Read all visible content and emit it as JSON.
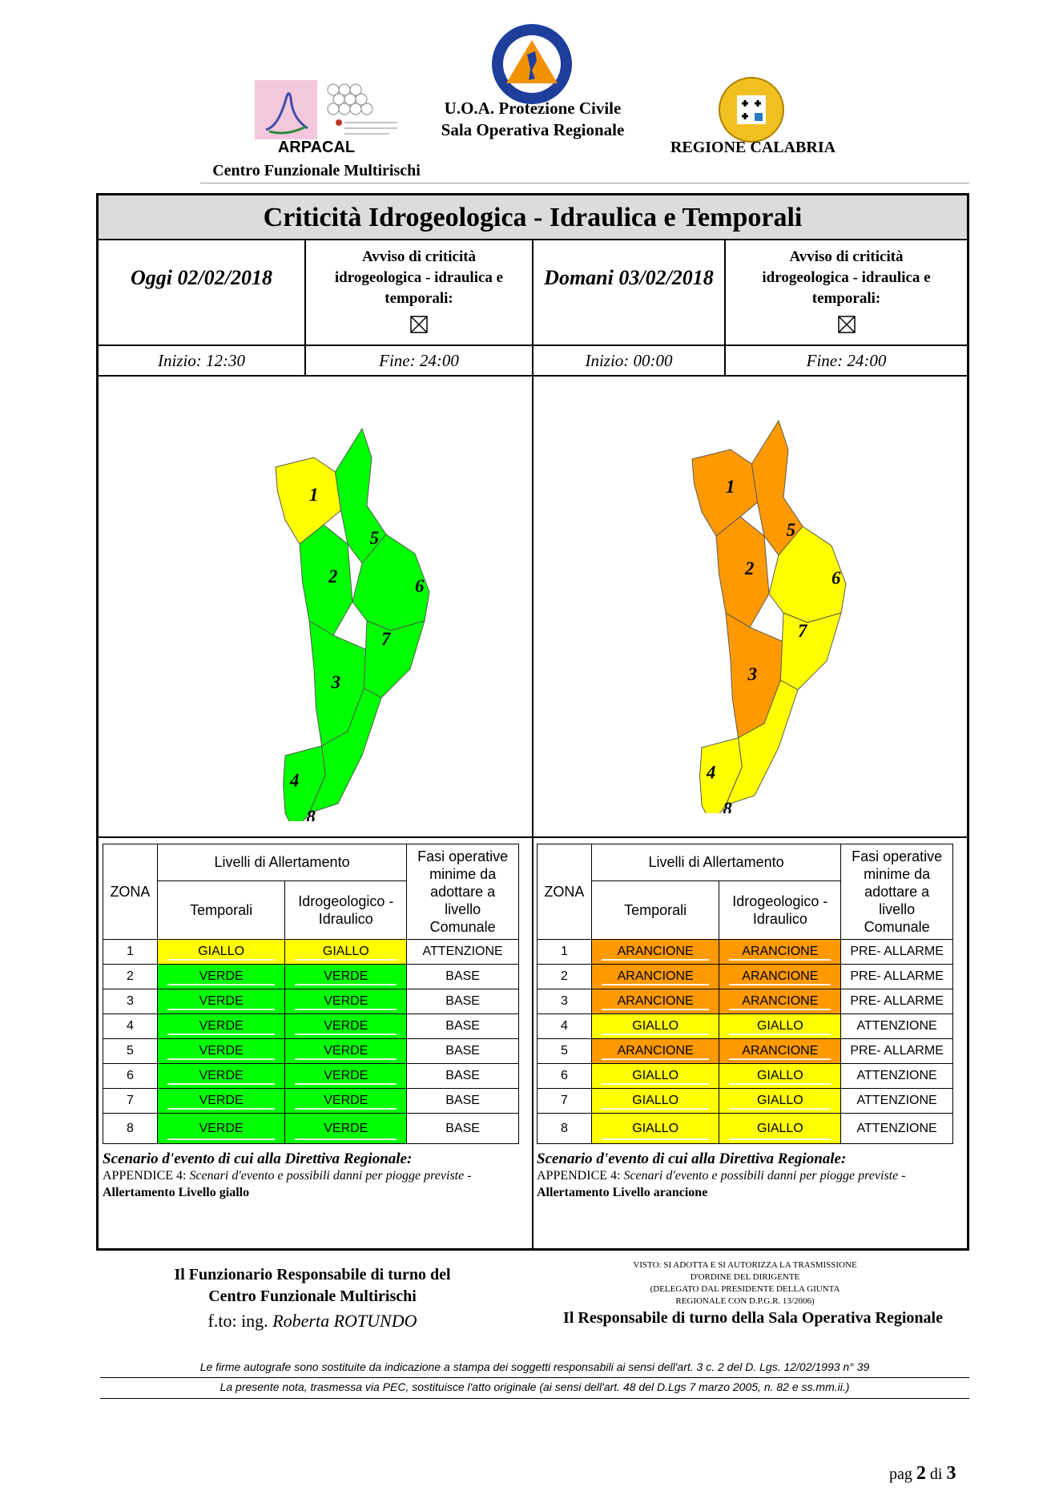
{
  "header": {
    "arpacal_name": "ARPACAL",
    "arpacal_sub": "Centro Funzionale Multirischi",
    "uoa_line1": "U.O.A. Protezione Civile",
    "uoa_line2": "Sala Operativa Regionale",
    "regione": "REGIONE CALABRIA"
  },
  "title": "Criticità Idrogeologica - Idraulica e Temporali",
  "today": {
    "date_label": "Oggi 02/02/2018",
    "avviso": [
      "Avviso di criticità",
      "idrogeologica - idraulica e",
      "temporali:"
    ],
    "inizio": "Inizio: 12:30",
    "fine": "Fine: 24:00",
    "zones": [
      {
        "zona": "1",
        "temporali": "GIALLO",
        "idro": "GIALLO",
        "fase": "ATTENZIONE",
        "color": "#ffff00"
      },
      {
        "zona": "2",
        "temporali": "VERDE",
        "idro": "VERDE",
        "fase": "BASE",
        "color": "#00ff00"
      },
      {
        "zona": "3",
        "temporali": "VERDE",
        "idro": "VERDE",
        "fase": "BASE",
        "color": "#00ff00"
      },
      {
        "zona": "4",
        "temporali": "VERDE",
        "idro": "VERDE",
        "fase": "BASE",
        "color": "#00ff00"
      },
      {
        "zona": "5",
        "temporali": "VERDE",
        "idro": "VERDE",
        "fase": "BASE",
        "color": "#00ff00"
      },
      {
        "zona": "6",
        "temporali": "VERDE",
        "idro": "VERDE",
        "fase": "BASE",
        "color": "#00ff00"
      },
      {
        "zona": "7",
        "temporali": "VERDE",
        "idro": "VERDE",
        "fase": "BASE",
        "color": "#00ff00"
      },
      {
        "zona": "8",
        "temporali": "VERDE",
        "idro": "VERDE",
        "fase": "BASE",
        "color": "#00ff00"
      }
    ],
    "scenario_title": "Scenario d'evento di cui alla Direttiva Regionale:",
    "scenario_app": "APPENDICE 4:",
    "scenario_desc": "Scenari d'evento e possibili danni per piogge previste -",
    "scenario_level": "Allertamento Livello giallo"
  },
  "tomorrow": {
    "date_label": "Domani 03/02/2018",
    "avviso": [
      "Avviso di criticità",
      "idrogeologica - idraulica e",
      "temporali:"
    ],
    "inizio": "Inizio: 00:00",
    "fine": "Fine: 24:00",
    "zones": [
      {
        "zona": "1",
        "temporali": "ARANCIONE",
        "idro": "ARANCIONE",
        "fase": "PRE- ALLARME",
        "color": "#ff9900"
      },
      {
        "zona": "2",
        "temporali": "ARANCIONE",
        "idro": "ARANCIONE",
        "fase": "PRE- ALLARME",
        "color": "#ff9900"
      },
      {
        "zona": "3",
        "temporali": "ARANCIONE",
        "idro": "ARANCIONE",
        "fase": "PRE- ALLARME",
        "color": "#ff9900"
      },
      {
        "zona": "4",
        "temporali": "GIALLO",
        "idro": "GIALLO",
        "fase": "ATTENZIONE",
        "color": "#ffff00"
      },
      {
        "zona": "5",
        "temporali": "ARANCIONE",
        "idro": "ARANCIONE",
        "fase": "PRE- ALLARME",
        "color": "#ff9900"
      },
      {
        "zona": "6",
        "temporali": "GIALLO",
        "idro": "GIALLO",
        "fase": "ATTENZIONE",
        "color": "#ffff00"
      },
      {
        "zona": "7",
        "temporali": "GIALLO",
        "idro": "GIALLO",
        "fase": "ATTENZIONE",
        "color": "#ffff00"
      },
      {
        "zona": "8",
        "temporali": "GIALLO",
        "idro": "GIALLO",
        "fase": "ATTENZIONE",
        "color": "#ffff00"
      }
    ],
    "scenario_title": "Scenario d'evento di cui alla Direttiva Regionale:",
    "scenario_app": "APPENDICE 4:",
    "scenario_desc": "Scenari d'evento e possibili danni per piogge previste -",
    "scenario_level": "Allertamento Livello arancione"
  },
  "table_headers": {
    "zona": "ZONA",
    "livelli": "Livelli di Allertamento",
    "temporali": "Temporali",
    "idro": "Idrogeologico - Idraulico",
    "fasi": "Fasi operative minime da adottare a livello Comunale"
  },
  "footer": {
    "funz_line1": "Il Funzionario Responsabile di turno del",
    "funz_line2": "Centro Funzionale Multirischi",
    "firma_prefix": "f.to: ing.",
    "firma_name": "Roberta ROTUNDO",
    "visto": [
      "VISTO: SI ADOTTA E SI AUTORIZZA LA TRASMISSIONE",
      "D'ORDINE DEL DIRIGENTE",
      "(DELEGATO DAL PRESIDENTE DELLA GIUNTA",
      "REGIONALE CON D.P.G.R. 13/2006)"
    ],
    "resp_sala": "Il Responsabile di turno della Sala Operativa Regionale",
    "note1": "Le firme autografe sono sostituite da indicazione a stampa dei soggetti responsabili ai sensi dell'art. 3 c. 2 del D. Lgs. 12/02/1993 n° 39",
    "note2": "La presente nota, trasmessa via PEC, sostituisce l'atto originale (ai sensi dell'art. 48 del D.Lgs 7 marzo 2005, n. 82 e ss.mm.ii.)",
    "pag_prefix": "pag",
    "pag_num": "2",
    "pag_di": "di",
    "pag_total": "3"
  },
  "map_colors": {
    "today": [
      "#ffff00",
      "#00ff00",
      "#00ff00",
      "#00ff00",
      "#00ff00",
      "#00ff00",
      "#00ff00",
      "#00ff00"
    ],
    "tomorrow": [
      "#ff9900",
      "#ff9900",
      "#ff9900",
      "#ffff00",
      "#ff9900",
      "#ffff00",
      "#ffff00",
      "#ffff00"
    ]
  }
}
